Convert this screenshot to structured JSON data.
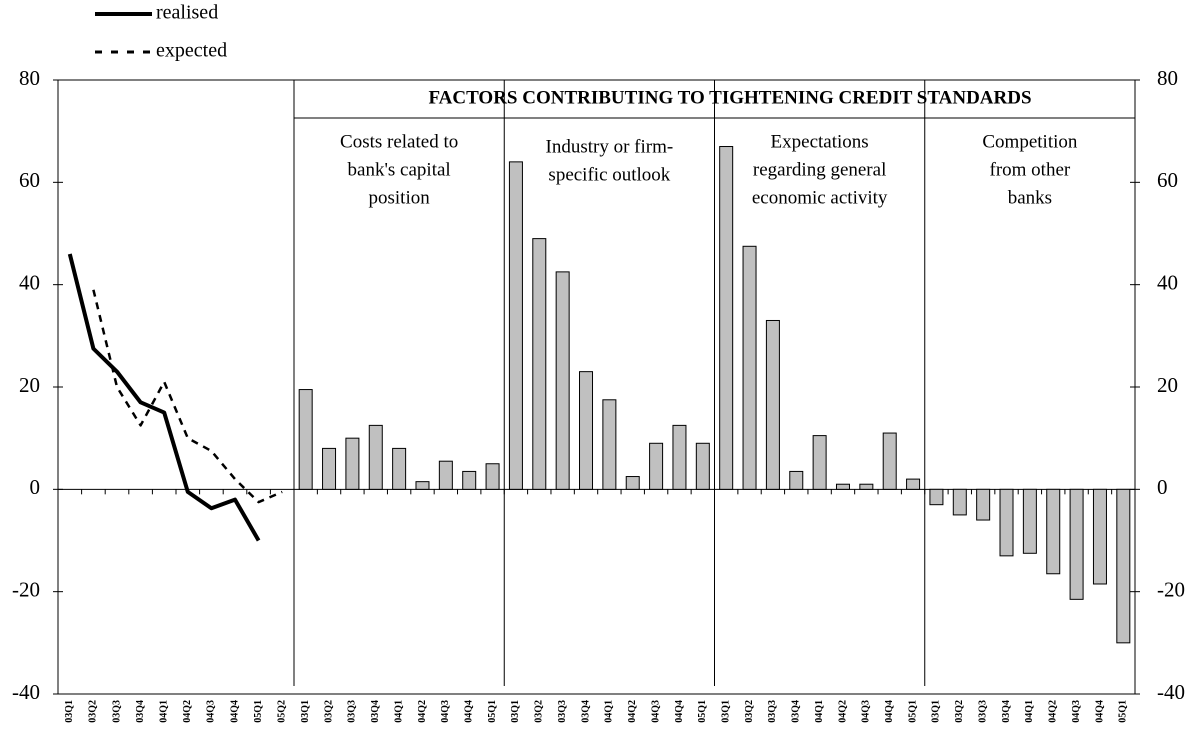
{
  "chart_data": [
    {
      "type": "line",
      "categories": [
        "03Q1",
        "03Q2",
        "03Q3",
        "03Q4",
        "04Q1",
        "04Q2",
        "04Q3",
        "04Q4",
        "05Q1",
        "05Q2"
      ],
      "series": [
        {
          "name": "realised",
          "color": "#000000",
          "dash": false,
          "values": [
            46,
            27.5,
            23,
            17,
            15,
            -0.5,
            -3.7,
            -2,
            -10,
            null
          ]
        },
        {
          "name": "expected",
          "color": "#000000",
          "dash": true,
          "values": [
            null,
            39,
            20,
            12.5,
            21,
            10,
            7.5,
            2,
            -2.5,
            -0.5
          ]
        }
      ],
      "ylim": [
        -40,
        80
      ],
      "yticks": [
        -40,
        -20,
        0,
        20,
        40,
        60,
        80
      ]
    },
    {
      "type": "bar",
      "title": "FACTORS CONTRIBUTING TO TIGHTENING CREDIT STANDARDS",
      "color": "#c0c0c0",
      "ylim": [
        -40,
        80
      ],
      "yticks": [
        -40,
        -20,
        0,
        20,
        40,
        60,
        80
      ],
      "panels": [
        {
          "label": [
            "Costs related to",
            "bank's capital",
            "position"
          ],
          "categories": [
            "03Q1",
            "03Q2",
            "03Q3",
            "03Q4",
            "04Q1",
            "04Q2",
            "04Q3",
            "04Q4",
            "05Q1"
          ],
          "values": [
            19.5,
            8,
            10,
            12.5,
            8,
            1.5,
            5.5,
            3.5,
            5
          ]
        },
        {
          "label": [
            "Industry or firm-",
            "specific outlook"
          ],
          "categories": [
            "03Q1",
            "03Q2",
            "03Q3",
            "03Q4",
            "04Q1",
            "04Q2",
            "04Q3",
            "04Q4",
            "05Q1"
          ],
          "values": [
            64,
            49,
            42.5,
            23,
            17.5,
            2.5,
            9,
            12.5,
            9
          ]
        },
        {
          "label": [
            "Expectations",
            "regarding general",
            "economic activity"
          ],
          "categories": [
            "03Q1",
            "03Q2",
            "03Q3",
            "03Q4",
            "04Q1",
            "04Q2",
            "04Q3",
            "04Q4",
            "05Q1"
          ],
          "values": [
            67,
            47.5,
            33,
            3.5,
            10.5,
            1,
            1,
            11,
            2
          ]
        },
        {
          "label": [
            "Competition",
            "from other",
            "banks"
          ],
          "categories": [
            "03Q1",
            "03Q2",
            "03Q3",
            "03Q4",
            "04Q1",
            "04Q2",
            "04Q3",
            "04Q4",
            "05Q1"
          ],
          "values": [
            -3,
            -5,
            -6,
            -13,
            -12.5,
            -16.5,
            -21.5,
            -18.5,
            -30
          ]
        }
      ]
    }
  ]
}
